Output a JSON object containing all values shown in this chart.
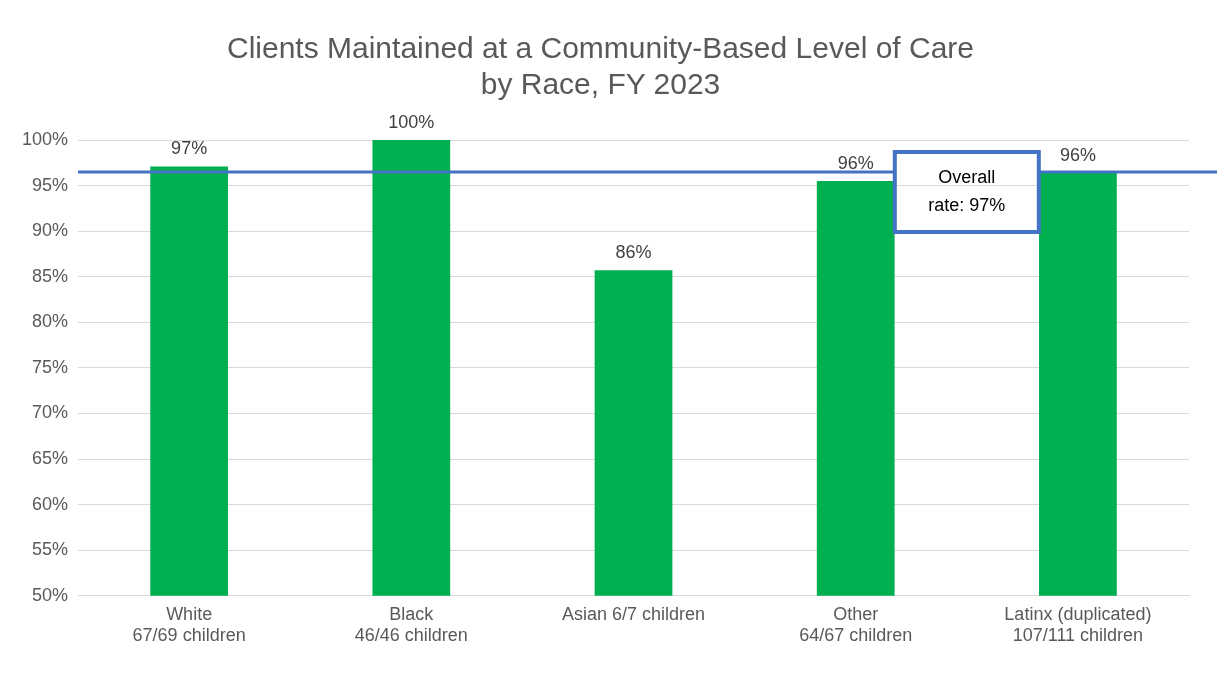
{
  "chart_data": {
    "type": "bar",
    "title": "Clients Maintained at a Community-Based Level of Care\nby Race, FY 2023",
    "categories": [
      "White\n67/69 children",
      "Black\n46/46 children",
      "Asian 6/7 children",
      "Other\n64/67 children",
      "Latinx (duplicated)\n107/111 children"
    ],
    "values": [
      97.1,
      100,
      85.7,
      95.5,
      96.4
    ],
    "value_labels": [
      "97%",
      "100%",
      "86%",
      "96%",
      "96%"
    ],
    "color": "#00b050",
    "ylim": [
      50,
      100
    ],
    "yticks": [
      {
        "value": 50,
        "label": "50%"
      },
      {
        "value": 55,
        "label": "55%"
      },
      {
        "value": 60,
        "label": "60%"
      },
      {
        "value": 65,
        "label": "65%"
      },
      {
        "value": 70,
        "label": "70%"
      },
      {
        "value": 75,
        "label": "75%"
      },
      {
        "value": 80,
        "label": "80%"
      },
      {
        "value": 85,
        "label": "85%"
      },
      {
        "value": 90,
        "label": "90%"
      },
      {
        "value": 95,
        "label": "95%"
      },
      {
        "value": 100,
        "label": "100%"
      }
    ],
    "grid": "y",
    "ref_lines": [
      {
        "axis": "y",
        "value": 96.5,
        "label": "Overall\nrate: 97%",
        "color": "#4472c4"
      }
    ]
  }
}
